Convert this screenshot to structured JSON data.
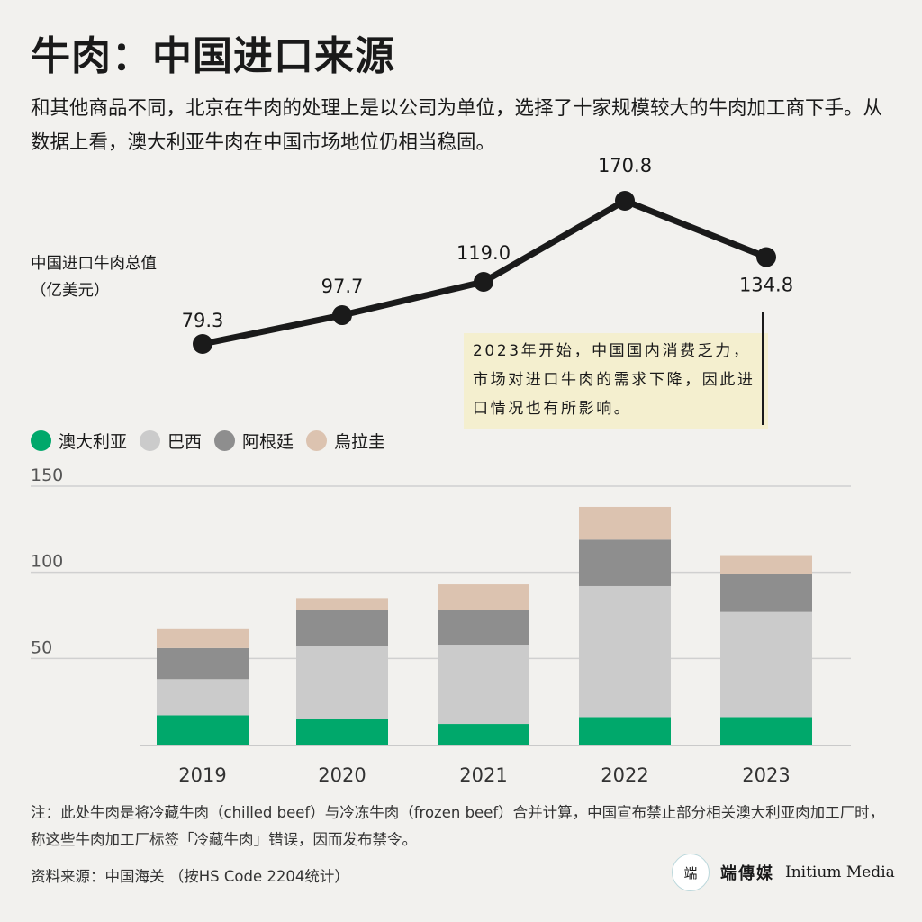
{
  "title": "牛肉：中国进口来源",
  "subtitle": "和其他商品不同，北京在牛肉的处理上是以公司为单位，选择了十家规模较大的牛肉加工商下手。从数据上看，澳大利亚牛肉在中国市场地位仍相当稳固。",
  "line_label": {
    "line1": "中国进口牛肉总值",
    "line2": "（亿美元）"
  },
  "annotation": "2023年开始，中国国内消费乏力，市场对进口牛肉的需求下降，因此进口情况也有所影响。",
  "note": "注：此处牛肉是将冷藏牛肉（chilled beef）与冷冻牛肉（frozen beef）合并计算，中国宣布禁止部分相关澳大利亚肉加工厂时，称这些牛肉加工厂标签「冷藏牛肉」错误，因而发布禁令。",
  "source": "资料来源：中国海关 （按HS Code 2204统计）",
  "brand": {
    "zh": "端傳媒",
    "en": "Initium Media",
    "logo_glyph": "端"
  },
  "colors": {
    "australia": "#00a86b",
    "brazil": "#cbcbcb",
    "argentina": "#8e8e8e",
    "uruguay": "#dcc3b0",
    "line": "#1a1a1a",
    "grid": "#d0d0d0"
  },
  "chart_data": [
    {
      "type": "line",
      "x": [
        "2019",
        "2020",
        "2021",
        "2022",
        "2023"
      ],
      "values": [
        79.3,
        97.7,
        119.0,
        170.8,
        134.8
      ],
      "data_labels": [
        "79.3",
        "97.7",
        "119.0",
        "170.8",
        "134.8"
      ],
      "ylabel": "中国进口牛肉总值（亿美元）"
    },
    {
      "type": "bar",
      "stacked": true,
      "categories": [
        "2019",
        "2020",
        "2021",
        "2022",
        "2023"
      ],
      "series": [
        {
          "name": "澳大利亚",
          "color": "#00a86b",
          "values": [
            17,
            15,
            12,
            16,
            16
          ]
        },
        {
          "name": "巴西",
          "color": "#cbcbcb",
          "values": [
            21,
            42,
            46,
            76,
            61
          ]
        },
        {
          "name": "阿根廷",
          "color": "#8e8e8e",
          "values": [
            18,
            21,
            20,
            27,
            22
          ]
        },
        {
          "name": "烏拉圭",
          "color": "#dcc3b0",
          "values": [
            11,
            7,
            15,
            19,
            11
          ]
        }
      ],
      "yticks": [
        50,
        100,
        150
      ],
      "ylim": [
        0,
        150
      ],
      "grid": true,
      "legend": "top-left"
    }
  ]
}
